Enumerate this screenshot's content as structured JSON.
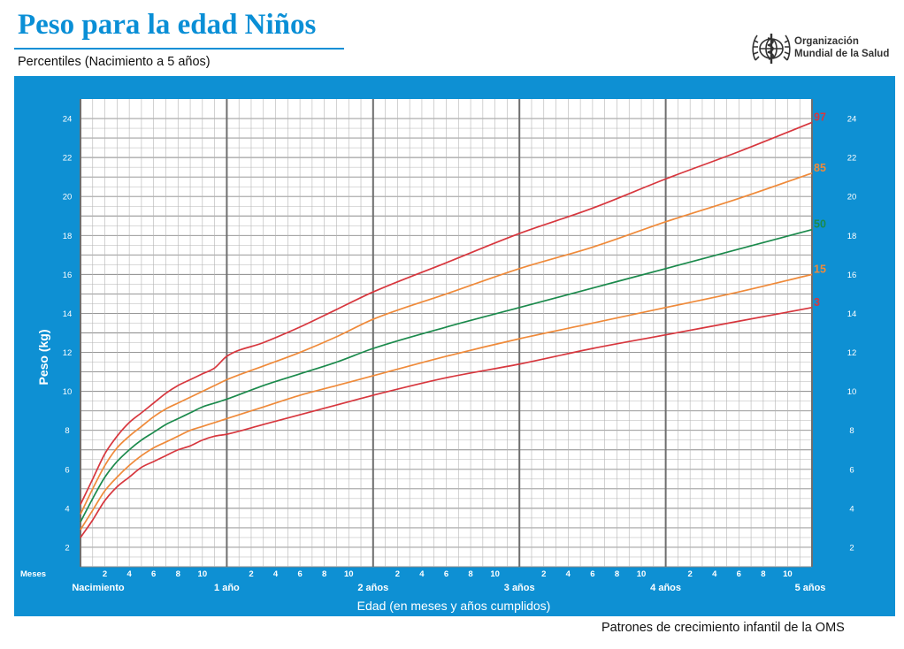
{
  "header": {
    "title": "Peso para la edad Niños",
    "subtitle": "Percentiles (Nacimiento a 5 años)",
    "org_line1": "Organización",
    "org_line2": "Mundial de la Salud",
    "logo_icon": "who-emblem-icon"
  },
  "footer": {
    "source": "Patrones de crecimiento infantil de la OMS"
  },
  "colors": {
    "panel": "#0e90d3",
    "grid": "#8a8a8a",
    "p3": "#d7373e",
    "p15": "#ef8a3a",
    "p50": "#1b8a4c",
    "p85": "#ef8a3a",
    "p97": "#d7373e"
  },
  "chart_data": {
    "type": "line",
    "xlabel": "Edad (en meses y años cumplidos)",
    "ylabel": "Peso (kg)",
    "xlim": [
      0,
      60
    ],
    "ylim": [
      1,
      25
    ],
    "grid": true,
    "y_ticks": [
      2,
      4,
      6,
      8,
      10,
      12,
      14,
      16,
      18,
      20,
      22,
      24
    ],
    "x_minor_label_name": "Meses",
    "x_minor_labels": [
      "2",
      "4",
      "6",
      "8",
      "10"
    ],
    "x_major_labels": [
      {
        "month": 0,
        "label": "Nacimiento"
      },
      {
        "month": 12,
        "label": "1 año"
      },
      {
        "month": 24,
        "label": "2 años"
      },
      {
        "month": 36,
        "label": "3 años"
      },
      {
        "month": 48,
        "label": "4 años"
      },
      {
        "month": 60,
        "label": "5 años"
      }
    ],
    "x": [
      0,
      1,
      2,
      3,
      4,
      5,
      6,
      7,
      8,
      9,
      10,
      11,
      12,
      15,
      18,
      21,
      24,
      30,
      36,
      42,
      48,
      54,
      60
    ],
    "series": [
      {
        "name": "3",
        "values": [
          2.5,
          3.4,
          4.4,
          5.1,
          5.6,
          6.1,
          6.4,
          6.7,
          7.0,
          7.2,
          7.5,
          7.7,
          7.8,
          8.3,
          8.8,
          9.3,
          9.8,
          10.7,
          11.4,
          12.2,
          12.9,
          13.6,
          14.3
        ]
      },
      {
        "name": "15",
        "values": [
          2.9,
          3.9,
          4.9,
          5.6,
          6.2,
          6.7,
          7.1,
          7.4,
          7.7,
          8.0,
          8.2,
          8.4,
          8.6,
          9.2,
          9.8,
          10.3,
          10.8,
          11.8,
          12.7,
          13.5,
          14.3,
          15.1,
          16.0
        ]
      },
      {
        "name": "50",
        "values": [
          3.3,
          4.5,
          5.6,
          6.4,
          7.0,
          7.5,
          7.9,
          8.3,
          8.6,
          8.9,
          9.2,
          9.4,
          9.6,
          10.3,
          10.9,
          11.5,
          12.2,
          13.3,
          14.3,
          15.3,
          16.3,
          17.3,
          18.3
        ]
      },
      {
        "name": "85",
        "values": [
          3.7,
          5.0,
          6.2,
          7.1,
          7.7,
          8.2,
          8.7,
          9.1,
          9.4,
          9.7,
          10.0,
          10.3,
          10.6,
          11.3,
          12.0,
          12.8,
          13.7,
          15.0,
          16.3,
          17.4,
          18.7,
          19.9,
          21.2
        ]
      },
      {
        "name": "97",
        "values": [
          4.2,
          5.5,
          6.8,
          7.7,
          8.4,
          8.9,
          9.4,
          9.9,
          10.3,
          10.6,
          10.9,
          11.2,
          11.8,
          12.5,
          13.3,
          14.2,
          15.1,
          16.6,
          18.1,
          19.4,
          20.9,
          22.3,
          23.8
        ]
      }
    ]
  }
}
